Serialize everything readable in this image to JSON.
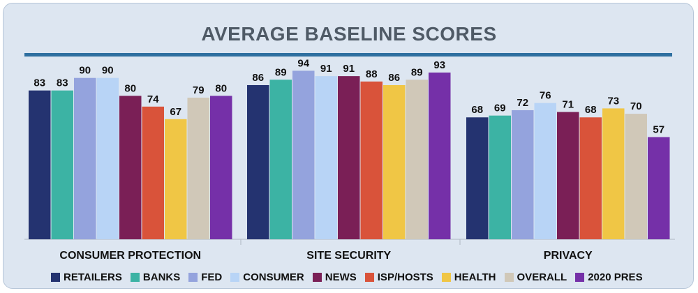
{
  "chart_data": {
    "type": "bar",
    "title": "AVERAGE BASELINE SCORES",
    "categories": [
      "CONSUMER PROTECTION",
      "SITE SECURITY",
      "PRIVACY"
    ],
    "ylim": [
      0,
      100
    ],
    "grid": false,
    "legend_position": "bottom",
    "series": [
      {
        "name": "RETAILERS",
        "color": "#243370",
        "values": [
          83,
          86,
          68
        ]
      },
      {
        "name": "BANKS",
        "color": "#3cb3a4",
        "values": [
          83,
          89,
          69
        ]
      },
      {
        "name": "FED",
        "color": "#94a3dd",
        "values": [
          90,
          94,
          72
        ]
      },
      {
        "name": "CONSUMER",
        "color": "#b8d4f6",
        "values": [
          90,
          91,
          76
        ]
      },
      {
        "name": "NEWS",
        "color": "#7a1f56",
        "values": [
          80,
          91,
          71
        ]
      },
      {
        "name": "ISP/HOSTS",
        "color": "#d9533a",
        "values": [
          74,
          88,
          68
        ]
      },
      {
        "name": "HEALTH",
        "color": "#f0c645",
        "values": [
          67,
          86,
          73
        ]
      },
      {
        "name": "OVERALL",
        "color": "#d0c8b8",
        "values": [
          79,
          89,
          70
        ]
      },
      {
        "name": "2020 PRES",
        "color": "#7530a8",
        "values": [
          80,
          93,
          57
        ]
      }
    ]
  }
}
